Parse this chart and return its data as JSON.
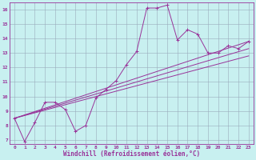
{
  "background_color": "#c8f0f0",
  "line_color": "#993399",
  "grid_color": "#99aabb",
  "xlabel": "Windchill (Refroidissement éolien,°C)",
  "xlabel_color": "#993399",
  "xlim": [
    -0.5,
    23.5
  ],
  "ylim": [
    6.7,
    16.5
  ],
  "xticks": [
    0,
    1,
    2,
    3,
    4,
    5,
    6,
    7,
    8,
    9,
    10,
    11,
    12,
    13,
    14,
    15,
    16,
    17,
    18,
    19,
    20,
    21,
    22,
    23
  ],
  "yticks": [
    7,
    8,
    9,
    10,
    11,
    12,
    13,
    14,
    15,
    16
  ],
  "main_x": [
    0,
    1,
    2,
    3,
    4,
    5,
    6,
    7,
    8,
    9,
    10,
    11,
    12,
    13,
    14,
    15,
    16,
    17,
    18,
    19,
    20,
    21,
    22,
    23
  ],
  "main_y": [
    8.5,
    6.9,
    8.2,
    9.6,
    9.6,
    9.1,
    7.6,
    8.0,
    9.9,
    10.5,
    11.1,
    12.2,
    13.1,
    16.1,
    16.1,
    16.3,
    13.9,
    14.6,
    14.3,
    13.0,
    13.0,
    13.5,
    13.3,
    13.8
  ],
  "line1_x": [
    0,
    23
  ],
  "line1_y": [
    8.5,
    13.8
  ],
  "line2_x": [
    0,
    23
  ],
  "line2_y": [
    8.5,
    13.3
  ],
  "line3_x": [
    0,
    23
  ],
  "line3_y": [
    8.5,
    12.8
  ],
  "figsize": [
    3.2,
    2.0
  ],
  "dpi": 100
}
